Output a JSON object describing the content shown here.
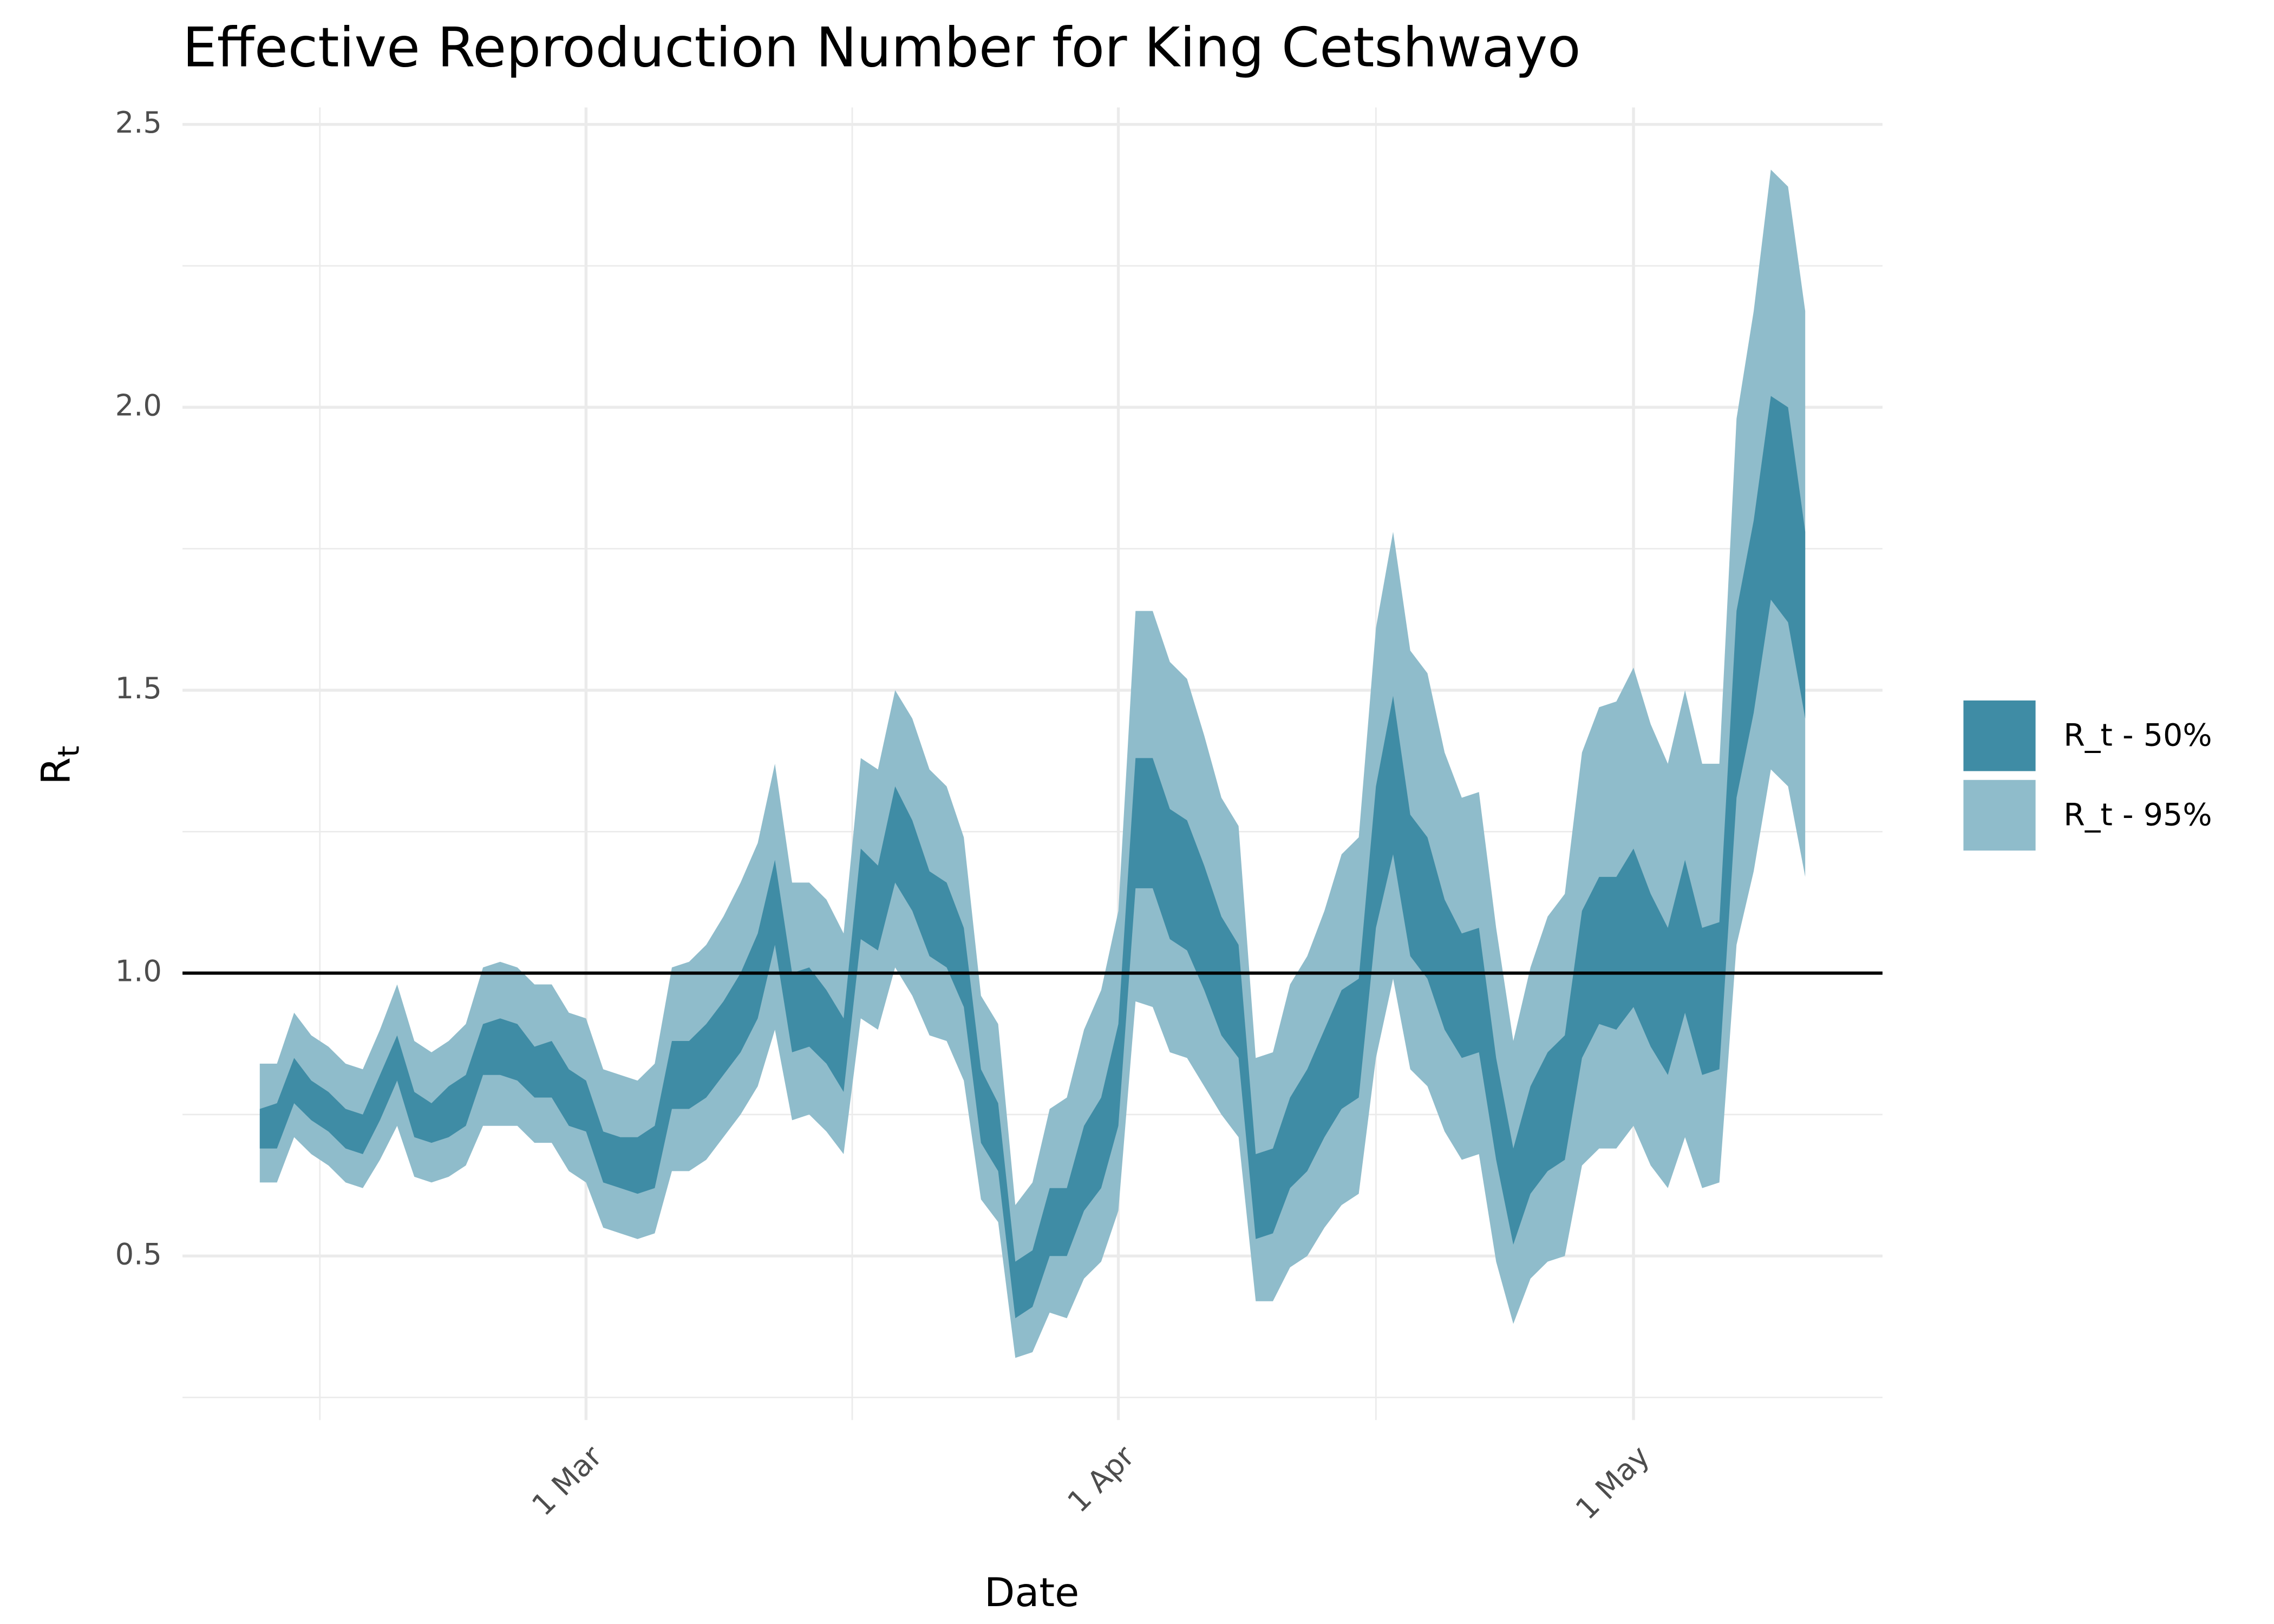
{
  "chart_data": {
    "type": "ribbon",
    "title": "Effective Reproduction Number for King Cetshwayo",
    "xlabel": "Date",
    "ylabel": [
      "R",
      "t"
    ],
    "categories": [
      "11 Feb",
      "12 Feb",
      "13 Feb",
      "14 Feb",
      "15 Feb",
      "16 Feb",
      "17 Feb",
      "18 Feb",
      "19 Feb",
      "20 Feb",
      "21 Feb",
      "22 Feb",
      "23 Feb",
      "24 Feb",
      "25 Feb",
      "26 Feb",
      "27 Feb",
      "28 Feb",
      "29 Feb",
      "1 Mar",
      "2 Mar",
      "3 Mar",
      "4 Mar",
      "5 Mar",
      "6 Mar",
      "7 Mar",
      "8 Mar",
      "9 Mar",
      "10 Mar",
      "11 Mar",
      "12 Mar",
      "13 Mar",
      "14 Mar",
      "15 Mar",
      "16 Mar",
      "17 Mar",
      "18 Mar",
      "19 Mar",
      "20 Mar",
      "21 Mar",
      "22 Mar",
      "23 Mar",
      "24 Mar",
      "25 Mar",
      "26 Mar",
      "27 Mar",
      "28 Mar",
      "29 Mar",
      "30 Mar",
      "31 Mar",
      "1 Apr",
      "2 Apr",
      "3 Apr",
      "4 Apr",
      "5 Apr",
      "6 Apr",
      "7 Apr",
      "8 Apr",
      "9 Apr",
      "10 Apr",
      "11 Apr",
      "12 Apr",
      "13 Apr",
      "14 Apr",
      "15 Apr",
      "16 Apr",
      "17 Apr",
      "18 Apr",
      "19 Apr",
      "20 Apr",
      "21 Apr",
      "22 Apr",
      "23 Apr",
      "24 Apr",
      "25 Apr",
      "26 Apr",
      "27 Apr",
      "28 Apr",
      "29 Apr",
      "30 Apr",
      "1 May",
      "2 May",
      "3 May",
      "4 May",
      "5 May",
      "6 May",
      "7 May",
      "8 May",
      "9 May",
      "10 May",
      "11 May"
    ],
    "xticks": [
      "1 Mar",
      "1 Apr",
      "1 May"
    ],
    "ylim": [
      0.21,
      2.53
    ],
    "yticks": [
      0.5,
      {
        "value": 1,
        "label": "1.0"
      },
      1.5,
      {
        "value": 2,
        "label": "2.0"
      },
      2.5
    ],
    "grid": true,
    "hline": 1,
    "legend": "right",
    "series": [
      {
        "name": "R_t - 50%",
        "color": "#3f8ca5",
        "lower": [
          0.69,
          0.69,
          0.77,
          0.74,
          0.72,
          0.69,
          0.68,
          0.74,
          0.81,
          0.71,
          0.7,
          0.71,
          0.73,
          0.82,
          0.82,
          0.81,
          0.78,
          0.78,
          0.73,
          0.72,
          0.63,
          0.62,
          0.61,
          0.62,
          0.76,
          0.76,
          0.78,
          0.82,
          0.86,
          0.92,
          1.05,
          0.86,
          0.87,
          0.84,
          0.79,
          1.06,
          1.04,
          1.16,
          1.11,
          1.03,
          1.01,
          0.94,
          0.7,
          0.65,
          0.39,
          0.41,
          0.5,
          0.5,
          0.58,
          0.62,
          0.73,
          1.15,
          1.15,
          1.06,
          1.04,
          0.97,
          0.89,
          0.85,
          0.53,
          0.54,
          0.62,
          0.65,
          0.71,
          0.76,
          0.78,
          1.08,
          1.21,
          1.03,
          0.99,
          0.9,
          0.85,
          0.86,
          0.67,
          0.52,
          0.61,
          0.65,
          0.67,
          0.85,
          0.91,
          0.9,
          0.94,
          0.87,
          0.82,
          0.93,
          0.82,
          0.83,
          1.31,
          1.46,
          1.66,
          1.62,
          1.45
        ],
        "upper": [
          0.76,
          0.77,
          0.85,
          0.81,
          0.79,
          0.76,
          0.75,
          0.82,
          0.89,
          0.79,
          0.77,
          0.8,
          0.82,
          0.91,
          0.92,
          0.91,
          0.87,
          0.88,
          0.83,
          0.81,
          0.72,
          0.71,
          0.71,
          0.73,
          0.88,
          0.88,
          0.91,
          0.95,
          1.0,
          1.07,
          1.2,
          1.0,
          1.01,
          0.97,
          0.92,
          1.22,
          1.19,
          1.33,
          1.27,
          1.18,
          1.16,
          1.08,
          0.83,
          0.77,
          0.49,
          0.51,
          0.62,
          0.62,
          0.73,
          0.78,
          0.91,
          1.38,
          1.38,
          1.29,
          1.27,
          1.19,
          1.1,
          1.05,
          0.68,
          0.69,
          0.78,
          0.83,
          0.9,
          0.97,
          0.99,
          1.33,
          1.49,
          1.28,
          1.24,
          1.13,
          1.07,
          1.08,
          0.85,
          0.69,
          0.8,
          0.86,
          0.89,
          1.11,
          1.17,
          1.17,
          1.22,
          1.14,
          1.08,
          1.2,
          1.08,
          1.09,
          1.64,
          1.8,
          2.02,
          2.0,
          1.78
        ]
      },
      {
        "name": "R_t - 95%",
        "color": "#8fbccb",
        "lower": [
          0.63,
          0.63,
          0.71,
          0.68,
          0.66,
          0.63,
          0.62,
          0.67,
          0.73,
          0.64,
          0.63,
          0.64,
          0.66,
          0.73,
          0.73,
          0.73,
          0.7,
          0.7,
          0.65,
          0.63,
          0.55,
          0.54,
          0.53,
          0.54,
          0.65,
          0.65,
          0.67,
          0.71,
          0.75,
          0.8,
          0.9,
          0.74,
          0.75,
          0.72,
          0.68,
          0.92,
          0.9,
          1.01,
          0.96,
          0.89,
          0.88,
          0.81,
          0.6,
          0.56,
          0.32,
          0.33,
          0.4,
          0.39,
          0.46,
          0.49,
          0.58,
          0.95,
          0.94,
          0.86,
          0.85,
          0.8,
          0.75,
          0.71,
          0.42,
          0.42,
          0.48,
          0.5,
          0.55,
          0.59,
          0.61,
          0.85,
          0.99,
          0.83,
          0.8,
          0.72,
          0.67,
          0.68,
          0.49,
          0.38,
          0.46,
          0.49,
          0.5,
          0.66,
          0.69,
          0.69,
          0.73,
          0.66,
          0.62,
          0.71,
          0.62,
          0.63,
          1.05,
          1.18,
          1.36,
          1.33,
          1.17
        ],
        "upper": [
          0.84,
          0.84,
          0.93,
          0.89,
          0.87,
          0.84,
          0.83,
          0.9,
          0.98,
          0.88,
          0.86,
          0.88,
          0.91,
          1.01,
          1.02,
          1.01,
          0.98,
          0.98,
          0.93,
          0.92,
          0.83,
          0.82,
          0.81,
          0.84,
          1.01,
          1.02,
          1.05,
          1.1,
          1.16,
          1.23,
          1.37,
          1.16,
          1.16,
          1.13,
          1.07,
          1.38,
          1.36,
          1.5,
          1.45,
          1.36,
          1.33,
          1.24,
          0.96,
          0.91,
          0.59,
          0.63,
          0.76,
          0.78,
          0.9,
          0.97,
          1.11,
          1.64,
          1.64,
          1.55,
          1.52,
          1.42,
          1.31,
          1.26,
          0.85,
          0.86,
          0.98,
          1.03,
          1.11,
          1.21,
          1.24,
          1.61,
          1.78,
          1.57,
          1.53,
          1.39,
          1.31,
          1.32,
          1.08,
          0.88,
          1.01,
          1.1,
          1.14,
          1.39,
          1.47,
          1.48,
          1.54,
          1.44,
          1.37,
          1.5,
          1.37,
          1.37,
          1.98,
          2.17,
          2.42,
          2.39,
          2.17
        ]
      }
    ]
  }
}
